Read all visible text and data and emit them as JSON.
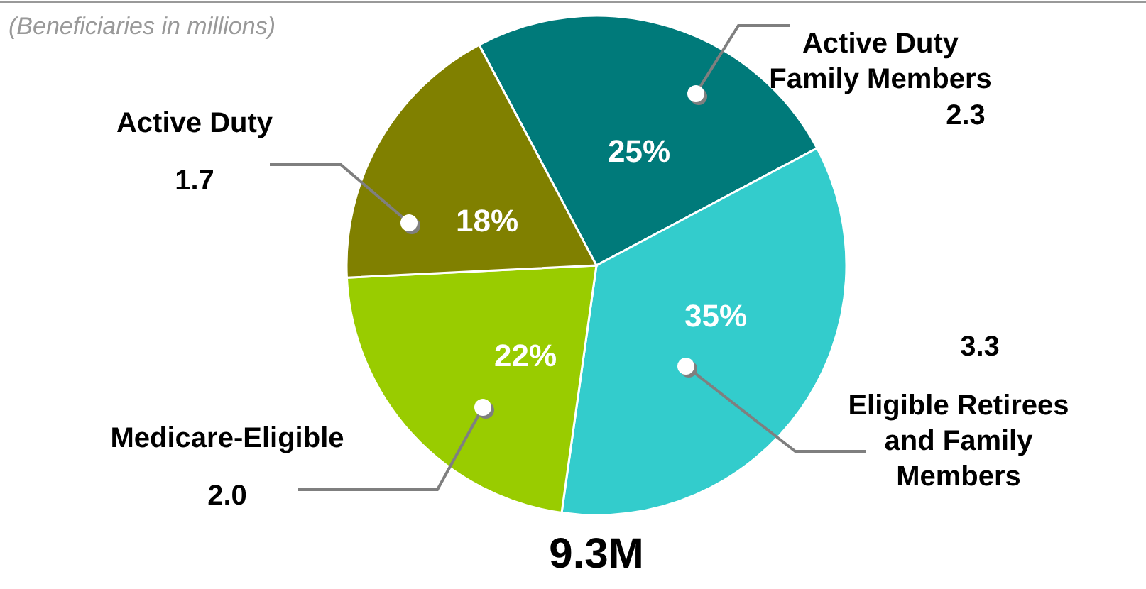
{
  "chart_data": {
    "type": "pie",
    "categories": [
      "Active Duty Family Members",
      "Eligible Retirees and Family Members",
      "Medicare-Eligible",
      "Active Duty"
    ],
    "values": [
      25,
      35,
      22,
      18
    ],
    "colors": [
      "#007a7a",
      "#33cccc",
      "#99cc00",
      "#808000"
    ],
    "value_labels": [
      "25%",
      "35%",
      "22%",
      "18%"
    ],
    "annotations": [
      "(Beneficiaries in millions)",
      "9.3M",
      {
        "text": "2.3",
        "x": "Active Duty Family Members"
      },
      {
        "text": "3.3",
        "x": "Eligible Retirees and Family Members"
      },
      {
        "text": "2.0",
        "x": "Medicare-Eligible"
      },
      {
        "text": "1.7",
        "x": "Active Duty"
      }
    ]
  }
}
